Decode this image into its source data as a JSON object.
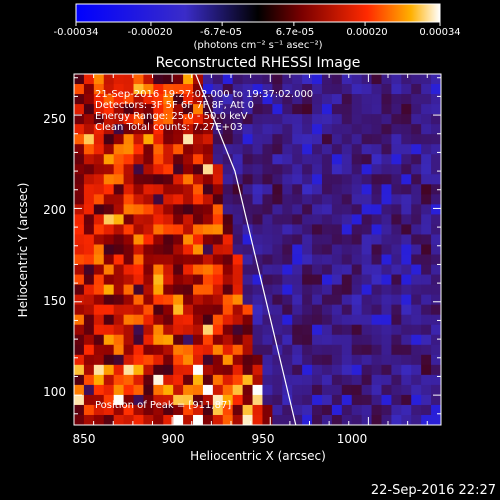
{
  "chart_data": {
    "type": "heatmap",
    "title": "Reconstructed RHESSI Image",
    "xlabel": "Heliocentric X (arcsec)",
    "ylabel": "Heliocentric Y (arcsec)",
    "xlim": [
      850,
      1037
    ],
    "ylim": [
      84,
      272
    ],
    "x_ticks": [
      "850",
      "900",
      "950",
      "1000"
    ],
    "x_tick_values": [
      850,
      900,
      950,
      1000
    ],
    "y_ticks": [
      "100",
      "150",
      "200",
      "250"
    ],
    "y_tick_values": [
      100,
      150,
      200,
      250
    ],
    "colorbar": {
      "range": [
        -0.00034,
        0.00034
      ],
      "tick_labels": [
        "-0.00034",
        "-0.00020",
        "-6.7e-05",
        "6.7e-05",
        "0.00020",
        "0.00034"
      ],
      "tick_values": [
        -0.00034,
        -0.0002,
        -6.7e-05,
        6.7e-05,
        0.0002,
        0.00034
      ],
      "unit_label": "(photons cm⁻² s⁻¹ asec⁻²)",
      "colors": [
        "#0000ff",
        "#2020a0",
        "#000000",
        "#600000",
        "#ff0000",
        "#ffaa00",
        "#ffffff"
      ]
    },
    "annotations": {
      "time_range": "21-Sep-2016 19:27:02.000 to 19:37:02.000",
      "detectors": "Detectors: 3F 5F 6F 7F 8F, Att 0",
      "energy": "Energy Range: 25.0 - 50.0 keV",
      "clean": "Clean    Total counts: 7.27E+03",
      "peak": "Position of Peak = [911,87]"
    },
    "limb_line": {
      "x": [
        912,
        932,
        948,
        963
      ],
      "y": [
        272,
        220,
        150,
        84
      ]
    },
    "peak_position": [
      911,
      87
    ]
  },
  "footer": {
    "timestamp": "22-Sep-2016 22:27"
  }
}
